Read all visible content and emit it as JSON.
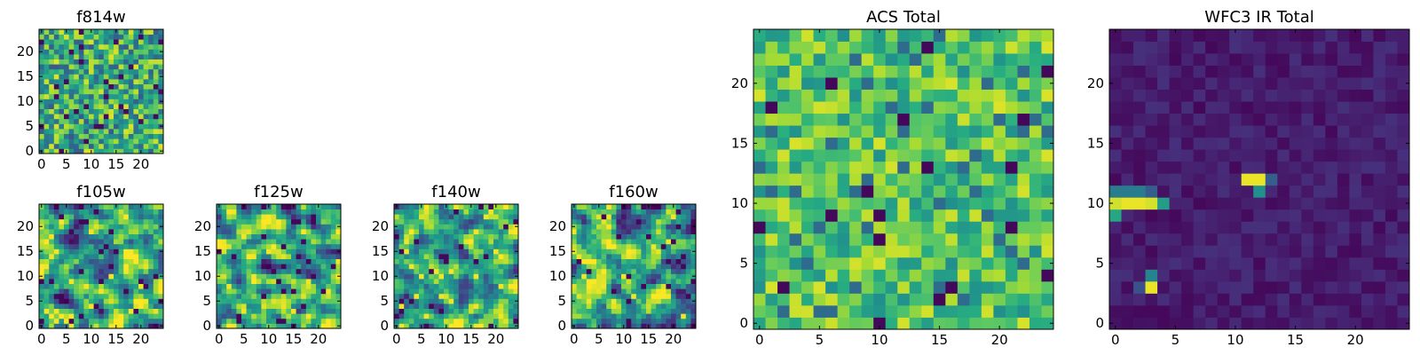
{
  "chart_data": [
    {
      "type": "heatmap",
      "title": "f814w",
      "x_ticks": [
        "0",
        "5",
        "10",
        "15",
        "20"
      ],
      "y_ticks": [
        "0",
        "5",
        "10",
        "15",
        "20"
      ],
      "grid_size": 25,
      "xlim": [
        -0.5,
        24.5
      ],
      "ylim": [
        -0.5,
        24.5
      ],
      "colormap": "viridis",
      "texture": "fine-noise",
      "seed": 7
    },
    {
      "type": "heatmap",
      "title": "f105w",
      "x_ticks": [
        "0",
        "5",
        "10",
        "15",
        "20"
      ],
      "y_ticks": [
        "0",
        "5",
        "10",
        "15",
        "20"
      ],
      "grid_size": 25,
      "xlim": [
        -0.5,
        24.5
      ],
      "ylim": [
        -0.5,
        24.5
      ],
      "colormap": "viridis",
      "texture": "smooth-noise",
      "seed": 13
    },
    {
      "type": "heatmap",
      "title": "f125w",
      "x_ticks": [
        "0",
        "5",
        "10",
        "15",
        "20"
      ],
      "y_ticks": [
        "0",
        "5",
        "10",
        "15",
        "20"
      ],
      "grid_size": 25,
      "xlim": [
        -0.5,
        24.5
      ],
      "ylim": [
        -0.5,
        24.5
      ],
      "colormap": "viridis",
      "texture": "smooth-noise",
      "seed": 29
    },
    {
      "type": "heatmap",
      "title": "f140w",
      "x_ticks": [
        "0",
        "5",
        "10",
        "15",
        "20"
      ],
      "y_ticks": [
        "0",
        "5",
        "10",
        "15",
        "20"
      ],
      "grid_size": 25,
      "xlim": [
        -0.5,
        24.5
      ],
      "ylim": [
        -0.5,
        24.5
      ],
      "colormap": "viridis",
      "texture": "smooth-noise",
      "seed": 41
    },
    {
      "type": "heatmap",
      "title": "f160w",
      "x_ticks": [
        "0",
        "5",
        "10",
        "15",
        "20"
      ],
      "y_ticks": [
        "0",
        "5",
        "10",
        "15",
        "20"
      ],
      "grid_size": 25,
      "xlim": [
        -0.5,
        24.5
      ],
      "ylim": [
        -0.5,
        24.5
      ],
      "colormap": "viridis",
      "texture": "smooth-noise",
      "seed": 53
    },
    {
      "type": "heatmap",
      "title": "ACS Total",
      "x_ticks": [
        "0",
        "5",
        "10",
        "15",
        "20"
      ],
      "y_ticks": [
        "0",
        "5",
        "10",
        "15",
        "20"
      ],
      "grid_size": 25,
      "xlim": [
        -0.5,
        24.5
      ],
      "ylim": [
        -0.5,
        24.5
      ],
      "colormap": "viridis",
      "texture": "bright-noise",
      "seed": 71
    },
    {
      "type": "heatmap",
      "title": "WFC3 IR Total",
      "x_ticks": [
        "0",
        "5",
        "10",
        "15",
        "20"
      ],
      "y_ticks": [
        "0",
        "5",
        "10",
        "15",
        "20"
      ],
      "grid_size": 25,
      "xlim": [
        -0.5,
        24.5
      ],
      "ylim": [
        -0.5,
        24.5
      ],
      "colormap": "viridis",
      "texture": "dark-with-hot-pixels",
      "seed": 97,
      "bright_cells": [
        {
          "x": 0,
          "y": 10,
          "value": 0.93
        },
        {
          "x": 1,
          "y": 10,
          "value": 0.97
        },
        {
          "x": 2,
          "y": 10,
          "value": 0.97
        },
        {
          "x": 3,
          "y": 10,
          "value": 0.94
        },
        {
          "x": 4,
          "y": 10,
          "value": 0.55
        },
        {
          "x": 0,
          "y": 11,
          "value": 0.42
        },
        {
          "x": 1,
          "y": 11,
          "value": 0.42
        },
        {
          "x": 2,
          "y": 11,
          "value": 0.42
        },
        {
          "x": 3,
          "y": 11,
          "value": 0.3
        },
        {
          "x": 0,
          "y": 9,
          "value": 0.6
        },
        {
          "x": 11,
          "y": 12,
          "value": 0.97
        },
        {
          "x": 12,
          "y": 12,
          "value": 0.97
        },
        {
          "x": 12,
          "y": 11,
          "value": 0.5
        },
        {
          "x": 13,
          "y": 12,
          "value": 0.3
        },
        {
          "x": 3,
          "y": 3,
          "value": 0.97
        },
        {
          "x": 3,
          "y": 4,
          "value": 0.45
        },
        {
          "x": 2,
          "y": 3,
          "value": 0.25
        }
      ]
    }
  ]
}
